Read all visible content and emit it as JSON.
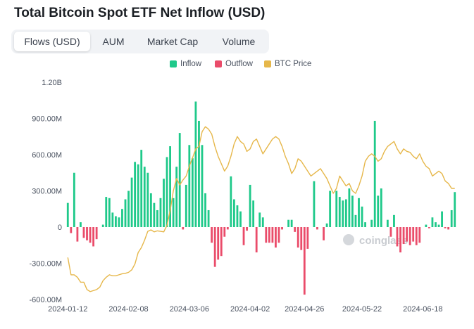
{
  "page_title": "Total Bitcoin Spot ETF Net Inflow (USD)",
  "tabs": [
    {
      "label": "Flows (USD)",
      "active": true
    },
    {
      "label": "AUM",
      "active": false
    },
    {
      "label": "Market Cap",
      "active": false
    },
    {
      "label": "Volume",
      "active": false
    }
  ],
  "watermark": "coinglass",
  "chart_data": {
    "type": "bar",
    "title": "Total Bitcoin Spot ETF Net Inflow (USD)",
    "ylim": [
      -600,
      1200
    ],
    "y_unit": "M USD",
    "yticks": [
      "1.20B",
      "900.00M",
      "600.00M",
      "300.00M",
      "0",
      "-300.00M",
      "-600.00M"
    ],
    "xticks": [
      "2024-01-12",
      "2024-02-08",
      "2024-03-06",
      "2024-04-02",
      "2024-04-26",
      "2024-05-22",
      "2024-06-18"
    ],
    "legend": [
      {
        "name": "Inflow",
        "color": "#1fc98a"
      },
      {
        "name": "Outflow",
        "color": "#ea4c6a"
      },
      {
        "name": "BTC Price",
        "color": "#e6b74a"
      }
    ],
    "colors": {
      "inflow": "#1fc98a",
      "outflow": "#ea4c6a",
      "price": "#e6b74a"
    },
    "series": [
      {
        "name": "Net Flow",
        "values": [
          200,
          -50,
          450,
          -120,
          40,
          -90,
          -110,
          -130,
          -160,
          -100,
          0,
          20,
          250,
          240,
          120,
          90,
          80,
          150,
          230,
          300,
          410,
          540,
          520,
          640,
          500,
          450,
          280,
          200,
          140,
          240,
          400,
          580,
          670,
          240,
          500,
          780,
          -20,
          350,
          680,
          570,
          1040,
          880,
          680,
          280,
          140,
          -130,
          -330,
          -270,
          -240,
          -80,
          -20,
          420,
          230,
          180,
          130,
          -150,
          -30,
          350,
          220,
          -210,
          120,
          80,
          -130,
          -130,
          -130,
          -170,
          -130,
          -20,
          0,
          60,
          60,
          -40,
          -170,
          -190,
          -560,
          -180,
          0,
          380,
          -20,
          0,
          -110,
          30,
          300,
          0,
          300,
          250,
          220,
          230,
          320,
          260,
          100,
          240,
          170,
          40,
          0,
          60,
          880,
          260,
          320,
          0,
          60,
          -80,
          100,
          -160,
          -210,
          -140,
          -120,
          -150,
          -120,
          -150,
          -130,
          0,
          20,
          -10,
          80,
          40,
          20,
          130,
          -10,
          -20,
          140,
          290
        ]
      },
      {
        "name": "BTC Price",
        "values": [
          46500,
          43000,
          43000,
          42500,
          41500,
          41500,
          40000,
          39600,
          39800,
          40000,
          40500,
          41800,
          42500,
          43000,
          42800,
          42800,
          43000,
          43200,
          43300,
          43500,
          44000,
          45200,
          47500,
          48500,
          50000,
          51800,
          52100,
          51700,
          51900,
          51800,
          51700,
          53000,
          56000,
          60000,
          62500,
          61200,
          62200,
          63000,
          65000,
          66700,
          68500,
          69000,
          72000,
          73000,
          72500,
          71500,
          69000,
          67000,
          65500,
          64000,
          65000,
          67000,
          69500,
          71000,
          70000,
          69500,
          68000,
          68500,
          70000,
          70500,
          69000,
          67500,
          68500,
          69500,
          70500,
          71000,
          70500,
          69000,
          67000,
          65500,
          63500,
          64500,
          66500,
          66000,
          65000,
          64000,
          63000,
          63500,
          64000,
          64500,
          63500,
          62500,
          61000,
          59500,
          60500,
          63000,
          62000,
          61000,
          61500,
          60000,
          59500,
          61000,
          63000,
          66000,
          67000,
          67500,
          67000,
          66000,
          66500,
          68000,
          69000,
          69500,
          70000,
          68500,
          67500,
          68500,
          68000,
          67800,
          67000,
          66500,
          67500,
          66000,
          65000,
          64500,
          63000,
          63500,
          64000,
          63500,
          62000,
          61500,
          60500,
          60500
        ]
      }
    ]
  }
}
